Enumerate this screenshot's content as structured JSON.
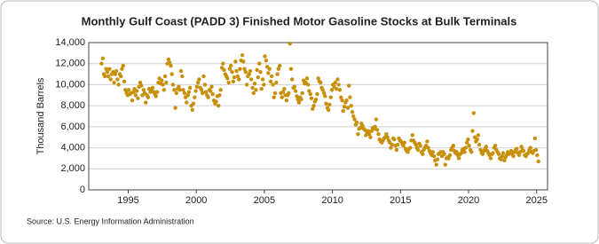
{
  "chart_data": {
    "type": "scatter",
    "title": "Monthly Gulf Coast (PADD 3) Finished Motor Gasoline Stocks at Bulk Terminals",
    "y_label": "Thousand Barrels",
    "source": "Source: U.S. Energy Information Administration",
    "color": "#c8900a",
    "grid": true,
    "xlim": [
      1992.1,
      2025.8
    ],
    "ylim": [
      0,
      14000
    ],
    "xticks": [
      1995,
      2000,
      2005,
      2010,
      2015,
      2020,
      2025
    ],
    "yticks": [
      0,
      {
        "value": 2000,
        "label": "2,000"
      },
      {
        "value": 4000,
        "label": "4,000"
      },
      {
        "value": 6000,
        "label": "6,000"
      },
      {
        "value": 8000,
        "label": "8,000"
      },
      {
        "value": 10000,
        "label": "10,000"
      },
      {
        "value": 12000,
        "label": "12,000"
      },
      {
        "value": 14000,
        "label": "14,000"
      }
    ],
    "x": [
      1993.04,
      1993.13,
      1993.21,
      1993.29,
      1993.38,
      1993.46,
      1993.54,
      1993.63,
      1993.71,
      1993.79,
      1993.88,
      1993.96,
      1994.04,
      1994.13,
      1994.21,
      1994.29,
      1994.38,
      1994.46,
      1994.54,
      1994.63,
      1994.71,
      1994.79,
      1994.88,
      1994.96,
      1995.04,
      1995.13,
      1995.21,
      1995.29,
      1995.38,
      1995.46,
      1995.54,
      1995.63,
      1995.71,
      1995.79,
      1995.88,
      1995.96,
      1996.04,
      1996.13,
      1996.21,
      1996.29,
      1996.38,
      1996.46,
      1996.54,
      1996.63,
      1996.71,
      1996.79,
      1996.88,
      1996.96,
      1997.04,
      1997.13,
      1997.21,
      1997.29,
      1997.38,
      1997.46,
      1997.54,
      1997.63,
      1997.71,
      1997.79,
      1997.88,
      1997.96,
      1998.04,
      1998.13,
      1998.21,
      1998.29,
      1998.38,
      1998.46,
      1998.54,
      1998.63,
      1998.71,
      1998.79,
      1998.88,
      1998.96,
      1999.04,
      1999.13,
      1999.21,
      1999.29,
      1999.38,
      1999.46,
      1999.54,
      1999.63,
      1999.71,
      1999.79,
      1999.88,
      1999.96,
      2000.04,
      2000.13,
      2000.21,
      2000.29,
      2000.38,
      2000.46,
      2000.54,
      2000.63,
      2000.71,
      2000.79,
      2000.88,
      2000.96,
      2001.04,
      2001.13,
      2001.21,
      2001.29,
      2001.38,
      2001.46,
      2001.54,
      2001.63,
      2001.71,
      2001.79,
      2001.88,
      2001.96,
      2002.04,
      2002.13,
      2002.21,
      2002.29,
      2002.38,
      2002.46,
      2002.54,
      2002.63,
      2002.71,
      2002.79,
      2002.88,
      2002.96,
      2003.04,
      2003.13,
      2003.21,
      2003.29,
      2003.38,
      2003.46,
      2003.54,
      2003.63,
      2003.71,
      2003.79,
      2003.88,
      2003.96,
      2004.04,
      2004.13,
      2004.21,
      2004.29,
      2004.38,
      2004.46,
      2004.54,
      2004.63,
      2004.71,
      2004.79,
      2004.88,
      2004.96,
      2005.04,
      2005.13,
      2005.21,
      2005.29,
      2005.38,
      2005.46,
      2005.54,
      2005.63,
      2005.71,
      2005.79,
      2005.88,
      2005.96,
      2006.04,
      2006.13,
      2006.21,
      2006.29,
      2006.38,
      2006.46,
      2006.54,
      2006.63,
      2006.71,
      2006.79,
      2006.88,
      2006.96,
      2007.04,
      2007.13,
      2007.21,
      2007.29,
      2007.38,
      2007.46,
      2007.54,
      2007.63,
      2007.71,
      2007.79,
      2007.88,
      2007.96,
      2008.04,
      2008.13,
      2008.21,
      2008.29,
      2008.38,
      2008.46,
      2008.54,
      2008.63,
      2008.71,
      2008.79,
      2008.88,
      2008.96,
      2009.04,
      2009.13,
      2009.21,
      2009.29,
      2009.38,
      2009.46,
      2009.54,
      2009.63,
      2009.71,
      2009.79,
      2009.88,
      2009.96,
      2010.04,
      2010.13,
      2010.21,
      2010.29,
      2010.38,
      2010.46,
      2010.54,
      2010.63,
      2010.71,
      2010.79,
      2010.88,
      2010.96,
      2011.04,
      2011.13,
      2011.21,
      2011.29,
      2011.38,
      2011.46,
      2011.54,
      2011.63,
      2011.71,
      2011.79,
      2011.88,
      2011.96,
      2012.04,
      2012.13,
      2012.21,
      2012.29,
      2012.38,
      2012.46,
      2012.54,
      2012.63,
      2012.71,
      2012.79,
      2012.88,
      2012.96,
      2013.04,
      2013.13,
      2013.21,
      2013.29,
      2013.38,
      2013.46,
      2013.54,
      2013.63,
      2013.71,
      2013.79,
      2013.88,
      2013.96,
      2014.04,
      2014.13,
      2014.21,
      2014.29,
      2014.38,
      2014.46,
      2014.54,
      2014.63,
      2014.71,
      2014.79,
      2014.88,
      2014.96,
      2015.04,
      2015.13,
      2015.21,
      2015.29,
      2015.38,
      2015.46,
      2015.54,
      2015.63,
      2015.71,
      2015.79,
      2015.88,
      2015.96,
      2016.04,
      2016.13,
      2016.21,
      2016.29,
      2016.38,
      2016.46,
      2016.54,
      2016.63,
      2016.71,
      2016.79,
      2016.88,
      2016.96,
      2017.04,
      2017.13,
      2017.21,
      2017.29,
      2017.38,
      2017.46,
      2017.54,
      2017.63,
      2017.71,
      2017.79,
      2017.88,
      2017.96,
      2018.04,
      2018.13,
      2018.21,
      2018.29,
      2018.38,
      2018.46,
      2018.54,
      2018.63,
      2018.71,
      2018.79,
      2018.88,
      2018.96,
      2019.04,
      2019.13,
      2019.21,
      2019.29,
      2019.38,
      2019.46,
      2019.54,
      2019.63,
      2019.71,
      2019.79,
      2019.88,
      2019.96,
      2020.04,
      2020.13,
      2020.21,
      2020.29,
      2020.38,
      2020.46,
      2020.54,
      2020.63,
      2020.71,
      2020.79,
      2020.88,
      2020.96,
      2021.04,
      2021.13,
      2021.21,
      2021.29,
      2021.38,
      2021.46,
      2021.54,
      2021.63,
      2021.71,
      2021.79,
      2021.88,
      2021.96,
      2022.04,
      2022.13,
      2022.21,
      2022.29,
      2022.38,
      2022.46,
      2022.54,
      2022.63,
      2022.71,
      2022.79,
      2022.88,
      2022.96,
      2023.04,
      2023.13,
      2023.21,
      2023.29,
      2023.38,
      2023.46,
      2023.54,
      2023.63,
      2023.71,
      2023.79,
      2023.88,
      2023.96,
      2024.04,
      2024.13,
      2024.21,
      2024.29,
      2024.38,
      2024.46,
      2024.54,
      2024.63,
      2024.71,
      2024.79,
      2024.88,
      2024.96,
      2025.04,
      2025.13
    ],
    "values": [
      12000,
      12500,
      11000,
      10800,
      11500,
      11200,
      10800,
      11500,
      10500,
      11000,
      11200,
      10200,
      11000,
      11300,
      10500,
      10000,
      11000,
      10800,
      11500,
      11800,
      10300,
      9500,
      9200,
      9000,
      9500,
      9100,
      9200,
      8500,
      9300,
      9600,
      9000,
      9400,
      8700,
      9800,
      10200,
      9900,
      9000,
      9500,
      9200,
      8300,
      9000,
      8800,
      9600,
      9300,
      9500,
      9700,
      9300,
      9100,
      8900,
      9300,
      10200,
      10600,
      10100,
      10400,
      10000,
      9500,
      10800,
      10200,
      12000,
      12400,
      12100,
      11800,
      11000,
      10000,
      9500,
      7800,
      9200,
      9600,
      9800,
      9500,
      11300,
      10800,
      9500,
      9200,
      8800,
      8300,
      9000,
      9300,
      9700,
      8000,
      7600,
      8200,
      8800,
      9400,
      9800,
      10200,
      10500,
      9700,
      9500,
      9200,
      10800,
      10000,
      9300,
      9000,
      8800,
      9500,
      9400,
      9800,
      9100,
      8500,
      8200,
      8400,
      8900,
      8000,
      9000,
      9500,
      11600,
      12000,
      11400,
      11000,
      10800,
      10600,
      10200,
      11500,
      11800,
      11200,
      10300,
      10700,
      12200,
      11300,
      10800,
      10500,
      11500,
      12300,
      12800,
      12200,
      11500,
      11200,
      10000,
      10800,
      11000,
      11300,
      10500,
      9700,
      9200,
      10100,
      9500,
      11400,
      10700,
      12000,
      11200,
      9600,
      10500,
      10000,
      12700,
      12300,
      11700,
      11100,
      11500,
      10300,
      10800,
      10000,
      8800,
      9200,
      10200,
      11000,
      11500,
      11800,
      9200,
      8800,
      9300,
      9600,
      9000,
      8500,
      9000,
      9200,
      13900,
      11500,
      10500,
      9700,
      9800,
      9400,
      8900,
      8600,
      8300,
      8800,
      8600,
      9200,
      10400,
      10100,
      10200,
      10600,
      10000,
      9400,
      9100,
      8700,
      7700,
      8000,
      8400,
      8600,
      9100,
      10600,
      10300,
      10200,
      9700,
      9500,
      9200,
      8900,
      8200,
      7800,
      7600,
      8100,
      8800,
      9500,
      10000,
      9800,
      10200,
      9600,
      10500,
      10000,
      9500,
      8800,
      8500,
      7500,
      7900,
      8300,
      8500,
      7800,
      9900,
      8800,
      8000,
      7400,
      7000,
      6700,
      6200,
      6400,
      5300,
      5800,
      5900,
      6300,
      6100,
      5800,
      5700,
      5200,
      5500,
      5600,
      5300,
      5000,
      5600,
      5900,
      5800,
      6000,
      6700,
      5700,
      5300,
      4800,
      4600,
      4500,
      4700,
      4900,
      5000,
      5300,
      5000,
      4700,
      4500,
      4000,
      4300,
      4900,
      4800,
      4200,
      3800,
      4300,
      4900,
      4700,
      4600,
      4400,
      4200,
      4500,
      3900,
      3700,
      3600,
      3900,
      4000,
      4700,
      5200,
      4700,
      4500,
      4300,
      4000,
      3800,
      4400,
      4200,
      3600,
      3400,
      3800,
      4000,
      4200,
      4600,
      4000,
      3700,
      3500,
      3300,
      3600,
      3200,
      2800,
      2400,
      2900,
      3400,
      3500,
      3600,
      3200,
      3600,
      3400,
      2400,
      3000,
      3100,
      3000,
      3300,
      3800,
      4000,
      4200,
      3700,
      3500,
      3600,
      3300,
      3000,
      3400,
      3500,
      3800,
      3900,
      3600,
      4000,
      4500,
      4800,
      4200,
      3800,
      3600,
      5600,
      7300,
      5000,
      4600,
      4800,
      5200,
      4300,
      3800,
      3500,
      3400,
      3700,
      3900,
      4100,
      3700,
      3500,
      3300,
      3000,
      3400,
      3500,
      4000,
      4200,
      3800,
      3600,
      3400,
      3000,
      2900,
      3200,
      3500,
      2800,
      3100,
      3300,
      3600,
      3400,
      3500,
      3700,
      3400,
      3200,
      3600,
      3800,
      3900,
      3500,
      3300,
      3600,
      4100,
      3800,
      3700,
      3300,
      3200,
      3400,
      3500,
      3800,
      4000,
      3600,
      3500,
      3700,
      4900,
      3800,
      3300,
      2700
    ]
  }
}
